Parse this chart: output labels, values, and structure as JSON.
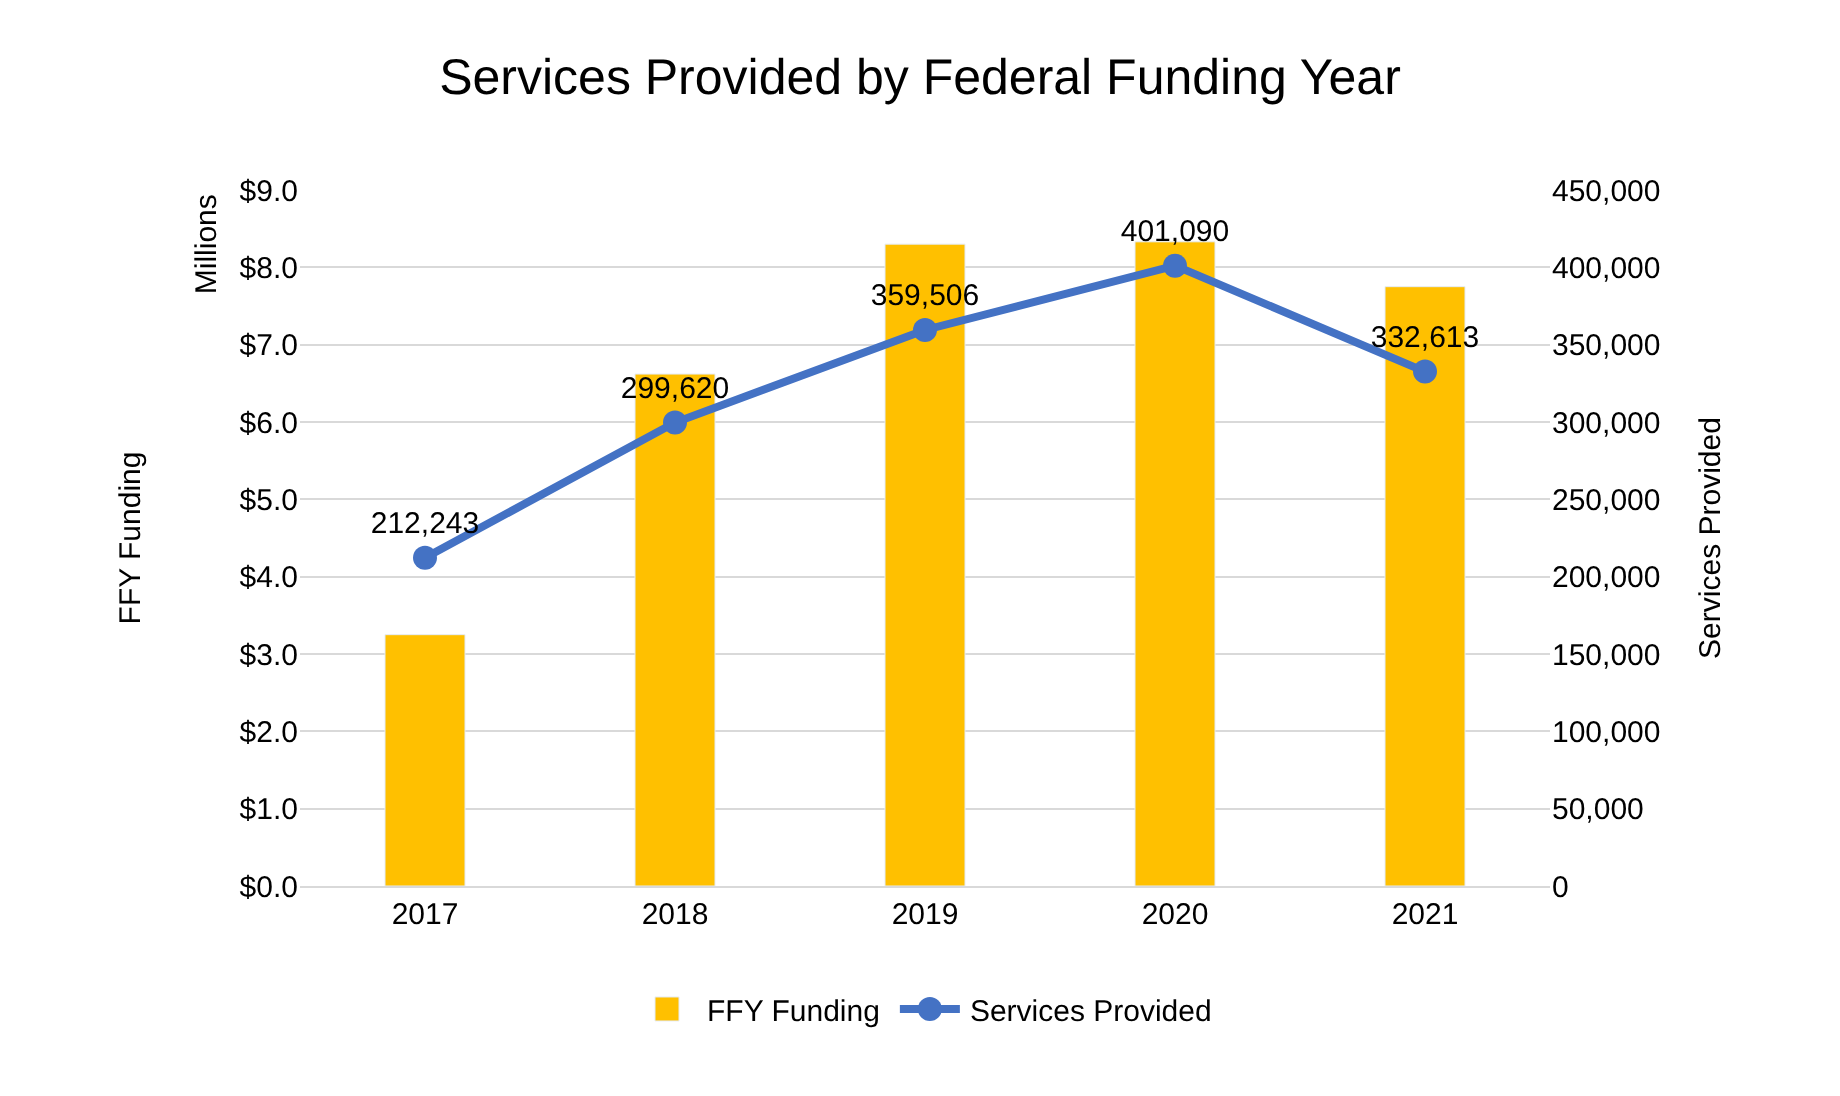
{
  "chart_data": {
    "type": "bar",
    "title": "Services Provided by Federal Funding Year",
    "categories": [
      "2017",
      "2018",
      "2019",
      "2020",
      "2021"
    ],
    "series": [
      {
        "name": "FFY Funding",
        "color": "#ffc000",
        "values": [
          3.25,
          6.62,
          8.3,
          8.33,
          7.75
        ]
      },
      {
        "name": "Services Provided",
        "type": "line",
        "axis": "y2",
        "color": "#4472c4",
        "marker": "circle",
        "values": [
          212243,
          299620,
          359506,
          401090,
          332613
        ],
        "value_labels": [
          "212,243",
          "299,620",
          "359,506",
          "401,090",
          "332,613"
        ]
      }
    ],
    "ylabel": "FFY Funding",
    "y2label": "Services Provided",
    "annotations": [
      "Millions"
    ],
    "ylim": [
      0,
      9
    ],
    "yticks": [
      {
        "value": 0,
        "label": "$0.0"
      },
      {
        "value": 1,
        "label": "$1.0"
      },
      {
        "value": 2,
        "label": "$2.0"
      },
      {
        "value": 3,
        "label": "$3.0"
      },
      {
        "value": 4,
        "label": "$4.0"
      },
      {
        "value": 5,
        "label": "$5.0"
      },
      {
        "value": 6,
        "label": "$6.0"
      },
      {
        "value": 7,
        "label": "$7.0"
      },
      {
        "value": 8,
        "label": "$8.0"
      },
      {
        "value": 9,
        "label": "$9.0"
      }
    ],
    "y2lim": [
      0,
      450000
    ],
    "y2ticks": [
      0,
      {
        "value": 50000,
        "label": "50,000"
      },
      {
        "value": 100000,
        "label": "100,000"
      },
      {
        "value": 150000,
        "label": "150,000"
      },
      {
        "value": 200000,
        "label": "200,000"
      },
      {
        "value": 250000,
        "label": "250,000"
      },
      {
        "value": 300000,
        "label": "300,000"
      },
      {
        "value": 350000,
        "label": "350,000"
      },
      {
        "value": 400000,
        "label": "400,000"
      },
      {
        "value": 450000,
        "label": "450,000"
      }
    ],
    "grid": "y",
    "legend": "bottom"
  }
}
